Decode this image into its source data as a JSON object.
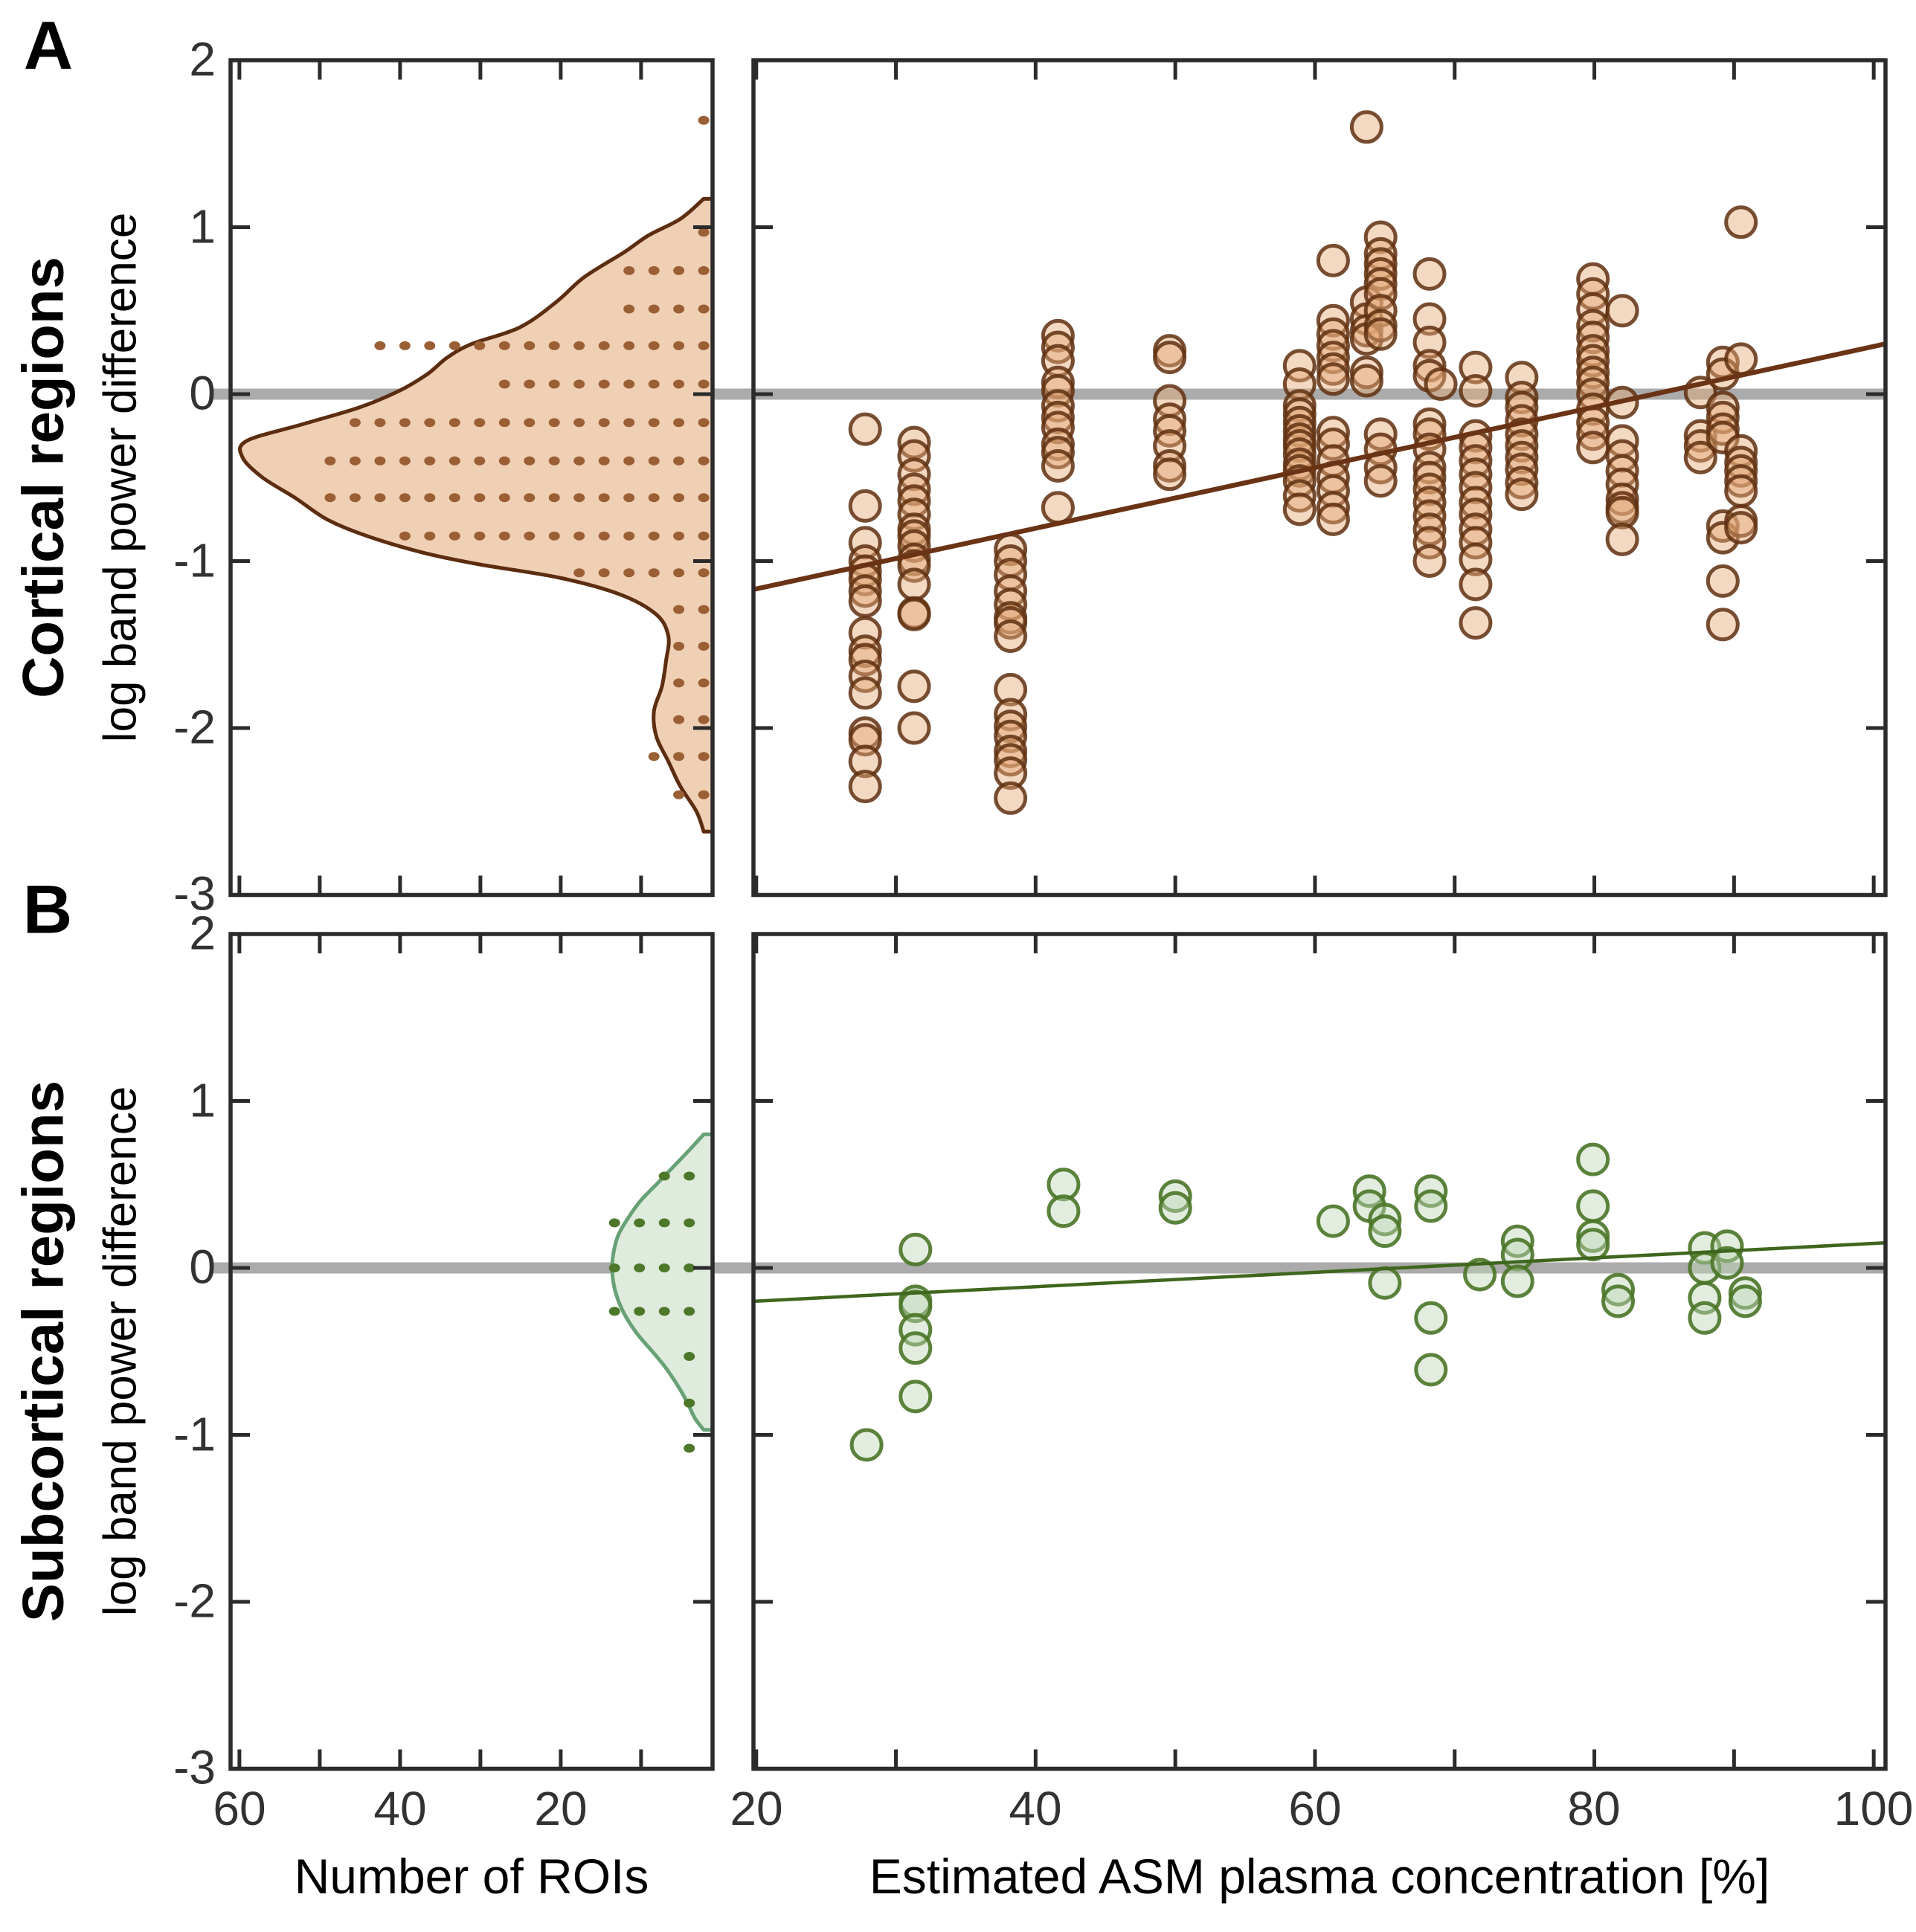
{
  "figure": {
    "panel_letters": [
      "A",
      "B"
    ],
    "row_titles": [
      "Cortical regions",
      "Subcortical regions"
    ],
    "ylabel": "log band power difference",
    "xlabel_left": "Number of ROIs",
    "xlabel_right": "Estimated ASM plasma concentration [%]"
  },
  "chart_data": {
    "type": "scatter",
    "title": "",
    "ylabel": "log band power difference",
    "ylim": [
      -3,
      2
    ],
    "y_ticks": [
      2,
      1,
      0,
      -1,
      -2,
      -3
    ],
    "y_tick_labels": [
      "2",
      "1",
      "0",
      "-1",
      "-2",
      "-3"
    ],
    "zero_reference_line": 0,
    "colors_shared": {
      "axis": "#2B2B2B",
      "zero_line": "#ABABAB",
      "tick_label": "#323232"
    },
    "panels": [
      {
        "label": "A",
        "row_title": "Cortical regions",
        "histogram": {
          "xlabel": "Number of ROIs",
          "x_tick_labels": [
            "60",
            "40",
            "20"
          ],
          "x_ticks_labeled": [
            60,
            40,
            20
          ],
          "x_ticks_all": [
            60,
            50,
            40,
            30,
            20,
            10
          ],
          "xlim": [
            61.1,
            1.1
          ],
          "x_reversed": true,
          "density_profile": [
            [
              1.17,
              1.1
            ],
            [
              1.05,
              4
            ],
            [
              0.95,
              8
            ],
            [
              0.85,
              11
            ],
            [
              0.7,
              16
            ],
            [
              0.55,
              19.5
            ],
            [
              0.4,
              24
            ],
            [
              0.3,
              30
            ],
            [
              0.22,
              33
            ],
            [
              0.12,
              35.5
            ],
            [
              0.02,
              39
            ],
            [
              -0.08,
              44
            ],
            [
              -0.18,
              51
            ],
            [
              -0.28,
              58
            ],
            [
              -0.38,
              58.5
            ],
            [
              -0.5,
              56
            ],
            [
              -0.62,
              52
            ],
            [
              -0.75,
              48
            ],
            [
              -0.85,
              43
            ],
            [
              -0.95,
              36
            ],
            [
              -1.02,
              29
            ],
            [
              -1.1,
              19
            ],
            [
              -1.2,
              11.5
            ],
            [
              -1.32,
              7
            ],
            [
              -1.45,
              5.5
            ],
            [
              -1.6,
              5.8
            ],
            [
              -1.75,
              6.3
            ],
            [
              -1.9,
              7.3
            ],
            [
              -2.05,
              7
            ],
            [
              -2.2,
              5.5
            ],
            [
              -2.35,
              4
            ],
            [
              -2.5,
              2
            ],
            [
              -2.62,
              1.1
            ]
          ],
          "dot_rows": [
            [
              1.64,
              1
            ],
            [
              0.97,
              1
            ],
            [
              0.74,
              4
            ],
            [
              0.51,
              4
            ],
            [
              0.29,
              14
            ],
            [
              0.06,
              9
            ],
            [
              -0.17,
              15
            ],
            [
              -0.4,
              16
            ],
            [
              -0.62,
              16
            ],
            [
              -0.85,
              13
            ],
            [
              -1.07,
              6
            ],
            [
              -1.29,
              2
            ],
            [
              -1.51,
              2
            ],
            [
              -1.73,
              2
            ],
            [
              -1.95,
              2
            ],
            [
              -2.17,
              3
            ],
            [
              -2.4,
              2
            ]
          ],
          "dot_right_value": 2.2,
          "dot_spacing": 3.1
        },
        "scatter": {
          "xlabel": "Estimated ASM plasma concentration [%]",
          "x_tick_labels": [
            "20",
            "40",
            "60",
            "80",
            "100"
          ],
          "x_ticks_labeled": [
            20,
            40,
            60,
            80,
            100
          ],
          "x_ticks_all": [
            20,
            30,
            40,
            50,
            60,
            70,
            80,
            90,
            100
          ],
          "xlim": [
            19.8,
            100.8
          ],
          "columns": [
            {
              "x": 27.8,
              "ys": [
                -0.21,
                -0.67,
                -0.89,
                -1.0,
                -1.06,
                -1.11,
                -1.18,
                -1.24,
                -1.43,
                -1.54,
                -1.59,
                -1.69,
                -1.79,
                -2.03,
                -2.07,
                -2.2,
                -2.35
              ]
            },
            {
              "x": 31.3,
              "ys": [
                -0.29,
                -0.37,
                -0.48,
                -0.57,
                -0.64,
                -0.72,
                -0.81,
                -0.85,
                -0.91,
                -0.99,
                -1.03,
                -1.14,
                -1.31,
                -1.32,
                -1.75,
                -2.0
              ]
            },
            {
              "x": 38.2,
              "ys": [
                -0.93,
                -1.0,
                -1.08,
                -1.18,
                -1.26,
                -1.34,
                -1.37,
                -1.45,
                -1.77,
                -1.92,
                -1.99,
                -2.05,
                -2.14,
                -2.19,
                -2.27,
                -2.42
              ]
            },
            {
              "x": 41.6,
              "ys": [
                0.35,
                0.28,
                0.2,
                0.07,
                0.02,
                -0.07,
                -0.14,
                -0.2,
                -0.3,
                -0.35,
                -0.43,
                -0.68
              ]
            },
            {
              "x": 49.6,
              "ys": [
                0.26,
                0.22,
                -0.04,
                -0.15,
                -0.22,
                -0.31,
                -0.43,
                -0.48
              ]
            },
            {
              "x": 58.9,
              "ys": [
                0.17,
                0.06,
                -0.07,
                -0.12,
                -0.17,
                -0.22,
                -0.27,
                -0.31,
                -0.36,
                -0.42,
                -0.46,
                -0.52,
                -0.61,
                -0.69
              ]
            },
            {
              "x": 61.3,
              "ys": [
                0.8,
                0.44,
                0.36,
                0.29,
                0.22,
                0.15,
                0.09,
                -0.23,
                -0.3,
                -0.4,
                -0.5,
                -0.58,
                -0.68,
                -0.75
              ]
            },
            {
              "x": 63.7,
              "ys": [
                1.6,
                0.55,
                0.45,
                0.38,
                0.33,
                0.13,
                0.08
              ]
            },
            {
              "x": 64.7,
              "ys": [
                0.94,
                0.84,
                0.78,
                0.72,
                0.66,
                0.6,
                0.5,
                0.41,
                0.36,
                -0.24,
                -0.33,
                -0.44,
                -0.52
              ]
            },
            {
              "x": 68.2,
              "ys": [
                0.72,
                0.45,
                0.31,
                0.17,
                0.11,
                -0.18,
                -0.24,
                -0.33,
                -0.44,
                -0.5,
                -0.57,
                -0.65,
                -0.73,
                -0.81,
                -0.89,
                -1.0
              ]
            },
            {
              "x": 69.0,
              "ys": [
                0.06
              ]
            },
            {
              "x": 71.5,
              "ys": [
                0.16,
                0.02,
                -0.25,
                -0.32,
                -0.4,
                -0.48,
                -0.56,
                -0.65,
                -0.72,
                -0.81,
                -0.89,
                -0.99,
                -1.14,
                -1.37
              ]
            },
            {
              "x": 74.8,
              "ys": [
                0.1,
                -0.02,
                -0.08,
                -0.16,
                -0.24,
                -0.31,
                -0.38,
                -0.45,
                -0.53,
                -0.6
              ]
            },
            {
              "x": 79.9,
              "ys": [
                0.69,
                0.6,
                0.51,
                0.41,
                0.34,
                0.26,
                0.2,
                0.13,
                0.07,
                0.0,
                -0.09,
                -0.17,
                -0.24,
                -0.32
              ]
            },
            {
              "x": 82.0,
              "ys": [
                0.5,
                -0.05,
                -0.28,
                -0.37,
                -0.46,
                -0.54,
                -0.63,
                -0.68,
                -0.71,
                -0.87
              ]
            },
            {
              "x": 87.6,
              "ys": [
                0.01,
                -0.25,
                -0.31,
                -0.38
              ]
            },
            {
              "x": 89.2,
              "ys": [
                0.19,
                0.12,
                -0.08,
                -0.14,
                -0.21,
                -0.26,
                -0.79,
                -0.86,
                -1.12,
                -1.38
              ]
            },
            {
              "x": 90.5,
              "ys": [
                1.03,
                0.21,
                -0.34,
                -0.41,
                -0.46,
                -0.52,
                -0.58,
                -0.76,
                -0.8
              ]
            }
          ],
          "trend": {
            "x1": 19.8,
            "y1": -1.17,
            "x2": 100.8,
            "y2": 0.3
          }
        },
        "colors": {
          "circle_stroke": "rgba(95,48,17,0.85)",
          "circle_fill": "rgba(228,168,120,0.45)",
          "density_fill": "#F0D0B5",
          "density_stroke": "#5C2D10",
          "dot": "#9A5F35",
          "trend": "#6B3315"
        }
      },
      {
        "label": "B",
        "row_title": "Subcortical regions",
        "histogram": {
          "xlabel": "Number of ROIs",
          "x_tick_labels": [
            "60",
            "40",
            "20"
          ],
          "x_ticks_labeled": [
            60,
            40,
            20
          ],
          "x_ticks_all": [
            60,
            50,
            40,
            30,
            20,
            10
          ],
          "xlim": [
            61.1,
            1.1
          ],
          "x_reversed": true,
          "density_profile": [
            [
              0.8,
              1.1
            ],
            [
              0.7,
              3
            ],
            [
              0.6,
              5
            ],
            [
              0.5,
              7
            ],
            [
              0.4,
              9
            ],
            [
              0.3,
              10.5
            ],
            [
              0.2,
              11.7
            ],
            [
              0.1,
              12.3
            ],
            [
              0.0,
              12.5
            ],
            [
              -0.1,
              12.3
            ],
            [
              -0.2,
              11.7
            ],
            [
              -0.3,
              10.7
            ],
            [
              -0.4,
              9.3
            ],
            [
              -0.5,
              7.5
            ],
            [
              -0.6,
              5.8
            ],
            [
              -0.7,
              4.4
            ],
            [
              -0.8,
              3.2
            ],
            [
              -0.9,
              2.2
            ],
            [
              -0.97,
              1.1
            ]
          ],
          "dot_rows": [
            [
              0.55,
              2
            ],
            [
              0.27,
              4
            ],
            [
              0.0,
              4
            ],
            [
              -0.26,
              4
            ],
            [
              -0.53,
              1
            ],
            [
              -0.81,
              1
            ],
            [
              -1.08,
              1
            ]
          ],
          "dot_right_value": 4.0,
          "dot_spacing": 3.1
        },
        "scatter": {
          "xlabel": "Estimated ASM plasma concentration [%]",
          "x_tick_labels": [
            "20",
            "40",
            "60",
            "80",
            "100"
          ],
          "x_ticks_labeled": [
            20,
            40,
            60,
            80,
            100
          ],
          "x_ticks_all": [
            20,
            30,
            40,
            50,
            60,
            70,
            80,
            90,
            100
          ],
          "xlim": [
            19.8,
            100.8
          ],
          "columns": [
            {
              "x": 27.9,
              "ys": [
                -1.06
              ]
            },
            {
              "x": 31.4,
              "ys": [
                0.11,
                -0.2,
                -0.23,
                -0.37,
                -0.48,
                -0.77
              ]
            },
            {
              "x": 42.0,
              "ys": [
                0.5,
                0.34
              ]
            },
            {
              "x": 50.0,
              "ys": [
                0.43,
                0.36
              ]
            },
            {
              "x": 61.3,
              "ys": [
                0.28
              ]
            },
            {
              "x": 63.9,
              "ys": [
                0.46,
                0.37
              ]
            },
            {
              "x": 65.0,
              "ys": [
                0.29,
                0.22,
                -0.09
              ]
            },
            {
              "x": 68.3,
              "ys": [
                0.46,
                0.37,
                -0.3,
                -0.61
              ]
            },
            {
              "x": 71.8,
              "ys": [
                -0.04
              ]
            },
            {
              "x": 74.5,
              "ys": [
                0.16,
                0.08,
                -0.08
              ]
            },
            {
              "x": 79.9,
              "ys": [
                0.65,
                0.37,
                0.19,
                0.14
              ]
            },
            {
              "x": 81.7,
              "ys": [
                -0.13,
                -0.2
              ]
            },
            {
              "x": 87.9,
              "ys": [
                0.12,
                0.0,
                -0.18,
                -0.3
              ]
            },
            {
              "x": 89.5,
              "ys": [
                0.13,
                0.03
              ]
            },
            {
              "x": 90.8,
              "ys": [
                -0.15,
                -0.2
              ]
            }
          ],
          "trend": {
            "x1": 19.8,
            "y1": -0.2,
            "x2": 100.8,
            "y2": 0.15
          }
        },
        "colors": {
          "circle_stroke": "rgba(74,116,39,0.9)",
          "circle_fill": "rgba(190,215,185,0.45)",
          "density_fill": "#DEEBDD",
          "density_stroke": "#69A176",
          "dot": "#4E7829",
          "trend": "#3F661D"
        }
      }
    ]
  }
}
